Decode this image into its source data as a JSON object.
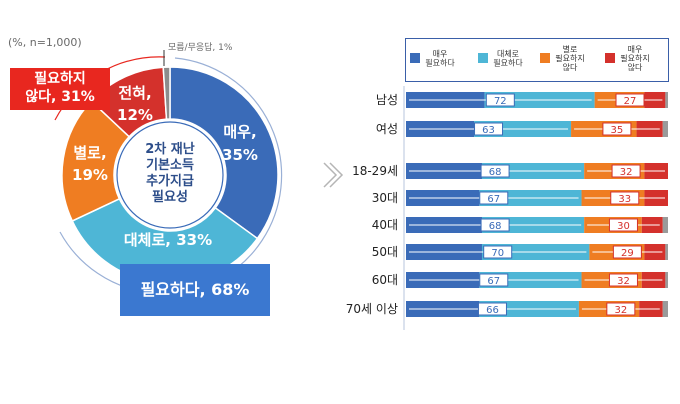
{
  "chart_data": [
    {
      "type": "pie",
      "note": "(%, n=1,000)",
      "center_label": "2차 재난\n기본소득\n추가지급\n필요성",
      "slices": [
        {
          "label": "매우,",
          "value": 35,
          "value_label": "35%",
          "color": "#3a6bb8"
        },
        {
          "label": "대체로, 33%",
          "value": 33,
          "value_label": "",
          "color": "#4eb6d6"
        },
        {
          "label": "별로,",
          "value": 19,
          "value_label": "19%",
          "color": "#ef7d22"
        },
        {
          "label": "전혀,",
          "value": 12,
          "value_label": "12%",
          "color": "#d4312c"
        },
        {
          "label": "모름/무응답, 1%",
          "value": 1,
          "value_label": "",
          "color": "#8c8c8c"
        }
      ],
      "callouts": {
        "not_needed": "필요하지\n않다, 31%",
        "needed": "필요하다, 68%"
      }
    },
    {
      "type": "bar",
      "orientation": "horizontal-stacked-100",
      "legend": [
        {
          "name": "매우\n필요하다",
          "color": "#3a6bb8"
        },
        {
          "name": "대체로\n필요하다",
          "color": "#4eb6d6"
        },
        {
          "name": "별로\n필요하지\n않다",
          "color": "#ef7d22"
        },
        {
          "name": "매우\n필요하지\n않다",
          "color": "#d4312c"
        }
      ],
      "categories": [
        "남성",
        "여성",
        "18-29세",
        "30대",
        "40대",
        "50대",
        "60대",
        "70세 이상"
      ],
      "needed_totals": [
        72,
        63,
        68,
        67,
        68,
        70,
        67,
        66
      ],
      "not_needed_totals": [
        27,
        35,
        32,
        33,
        30,
        29,
        32,
        32
      ]
    }
  ]
}
